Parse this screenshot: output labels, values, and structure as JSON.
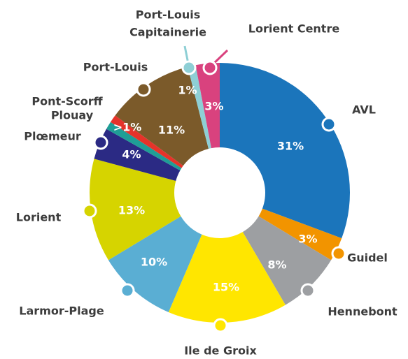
{
  "chart_data": {
    "type": "donut",
    "categories": [
      "AVL",
      "Guidel",
      "Hennebont",
      "Ile de Groix",
      "Larmor-Plage",
      "Lorient",
      "Plœmeur",
      "Plouay",
      "Pont-Scorff",
      "Port-Louis",
      [
        "Port-Louis",
        "Capitainerie"
      ],
      "Lorient Centre"
    ],
    "values": [
      31,
      3,
      8,
      15,
      10,
      13,
      4,
      1,
      1,
      11,
      1,
      3
    ],
    "value_labels": [
      "31%",
      "3%",
      "8%",
      "15%",
      "10%",
      "13%",
      "4%",
      ">1%",
      null,
      "11%",
      "1%",
      "3%"
    ],
    "colors": [
      "#1b75bb",
      "#f29400",
      "#9d9fa2",
      "#ffe600",
      "#5aaed3",
      "#d6d400",
      "#2b2a84",
      "#1f9e96",
      "#e6332a",
      "#7b5a2a",
      "#8ecfd5",
      "#d9427e"
    ]
  }
}
